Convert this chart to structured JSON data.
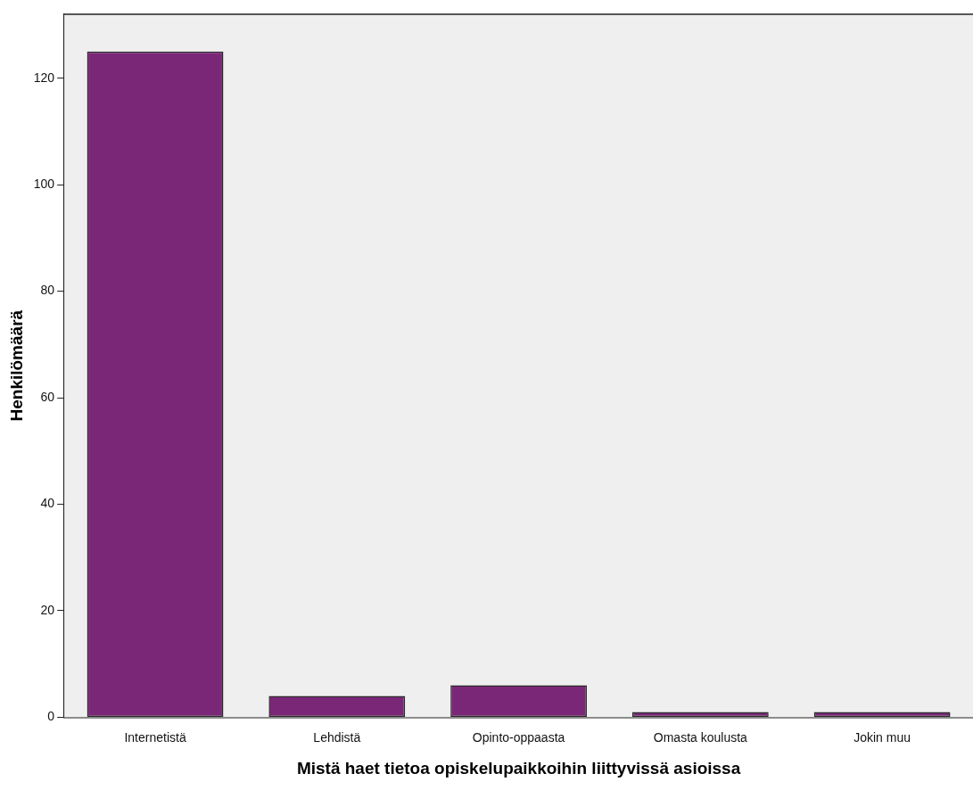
{
  "chart_data": {
    "type": "bar",
    "xlabel": "Mistä haet tietoa opiskelupaikkoihin liittyvissä asioissa",
    "ylabel": "Henkilömäärä",
    "categories": [
      "Internetistä",
      "Lehdistä",
      "Opinto-oppaasta",
      "Omasta koulusta",
      "Jokin muu"
    ],
    "values": [
      125,
      4,
      6,
      1,
      1
    ],
    "color": "#7b2778",
    "ylim": [
      0,
      132
    ],
    "yticks": [
      0,
      20,
      40,
      60,
      80,
      100,
      120
    ],
    "grid": false,
    "legend": false
  }
}
